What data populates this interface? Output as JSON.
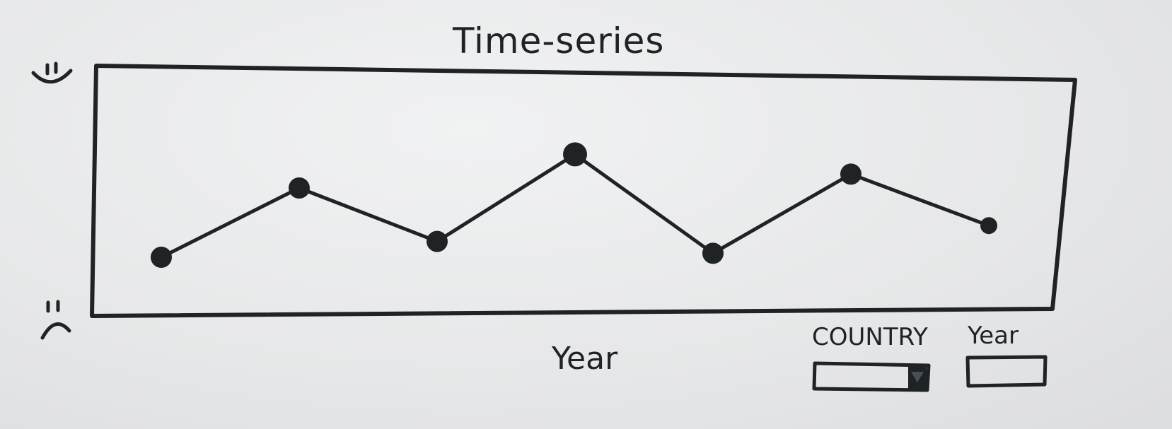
{
  "title": "Time-series",
  "x_axis_label": "Year",
  "y_axis": {
    "top_icon": "happy-face-icon",
    "bottom_icon": "sad-face-icon",
    "top_glyph": "̈‿",
    "bottom_glyph": "̈⌢"
  },
  "controls": {
    "country": {
      "label": "COUNTRY",
      "type": "dropdown",
      "icon": "dropdown-arrow-icon"
    },
    "year": {
      "label": "Year",
      "type": "text-input"
    }
  },
  "chart_data": {
    "type": "line",
    "title": "Time-series",
    "xlabel": "Year",
    "ylabel": "",
    "ylim": [
      0,
      1
    ],
    "values": [
      0.2,
      0.55,
      0.28,
      0.72,
      0.22,
      0.62,
      0.36
    ],
    "grid": false
  }
}
